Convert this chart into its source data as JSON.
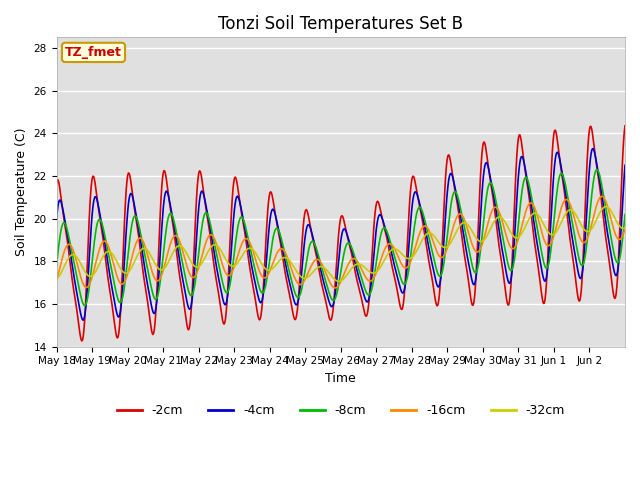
{
  "title": "Tonzi Soil Temperatures Set B",
  "xlabel": "Time",
  "ylabel": "Soil Temperature (C)",
  "ylim": [
    14,
    28.5
  ],
  "annotation": "TZ_fmet",
  "annotation_color": "#cc0000",
  "annotation_bg": "#ffffdd",
  "annotation_border": "#cc9900",
  "series": {
    "-2cm": {
      "color": "#dd0000",
      "linewidth": 1.2
    },
    "-4cm": {
      "color": "#0000cc",
      "linewidth": 1.2
    },
    "-8cm": {
      "color": "#00bb00",
      "linewidth": 1.2
    },
    "-16cm": {
      "color": "#ff8800",
      "linewidth": 1.2
    },
    "-32cm": {
      "color": "#cccc00",
      "linewidth": 1.2
    }
  },
  "yticks": [
    14,
    16,
    18,
    20,
    22,
    24,
    26,
    28
  ],
  "xtick_labels": [
    "May 18",
    "May 19",
    "May 20",
    "May 21",
    "May 22",
    "May 23",
    "May 24",
    "May 25",
    "May 26",
    "May 27",
    "May 28",
    "May 29",
    "May 30",
    "May 31",
    "Jun 1",
    "Jun 2"
  ],
  "background_color": "#e0e0e0",
  "grid_color": "white",
  "title_fontsize": 12,
  "label_fontsize": 9,
  "tick_fontsize": 7.5
}
